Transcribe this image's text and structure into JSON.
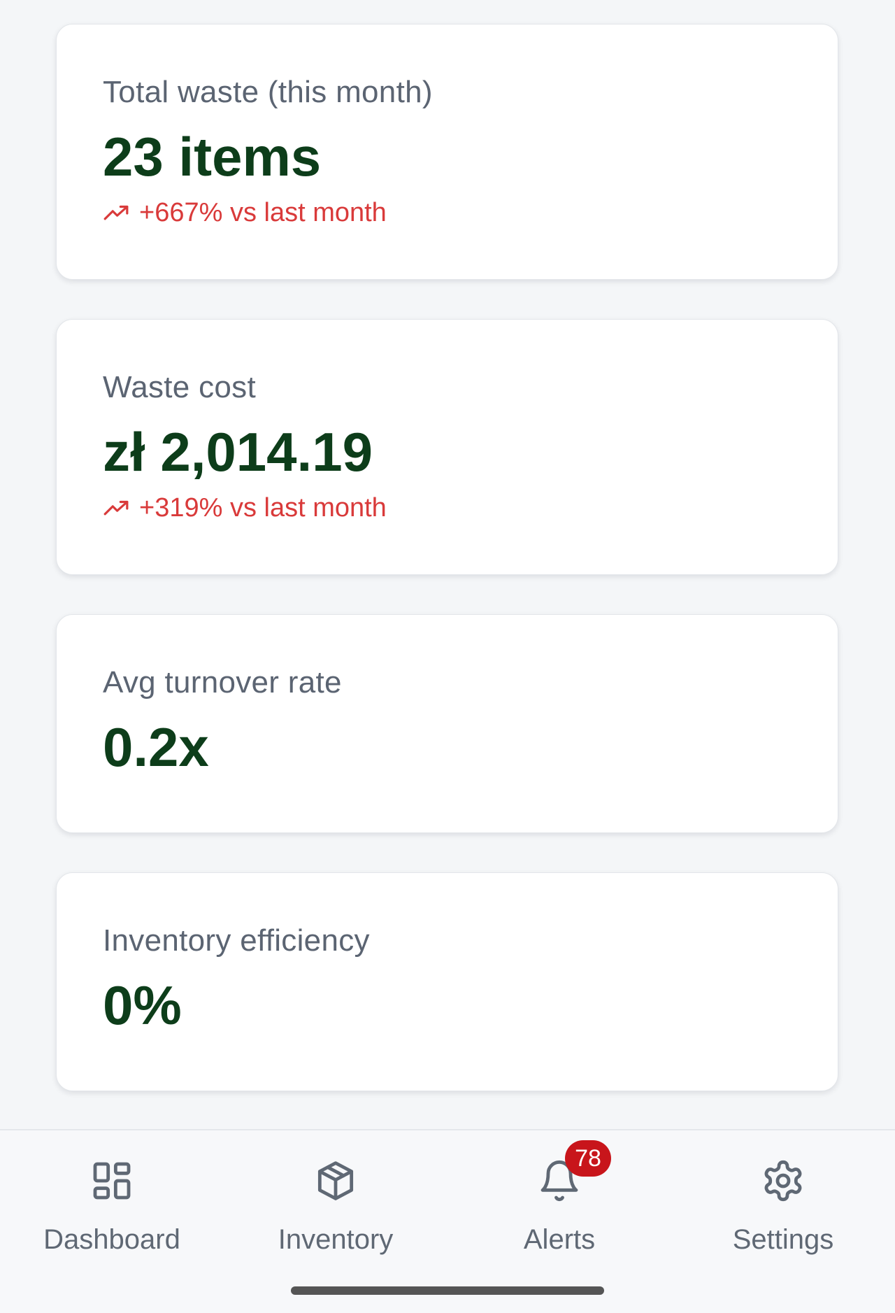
{
  "cards": [
    {
      "label": "Total waste (this month)",
      "value": "23 items",
      "trend": "+667% vs last month"
    },
    {
      "label": "Waste cost",
      "value": "zł 2,014.19",
      "trend": "+319% vs last month"
    },
    {
      "label": "Avg turnover rate",
      "value": "0.2x"
    },
    {
      "label": "Inventory efficiency",
      "value": "0%"
    }
  ],
  "colors": {
    "value": "#0d3d1a",
    "label": "#5b6472",
    "trend_up": "#d93a3a",
    "badge": "#c8151b",
    "background": "#f4f6f8"
  },
  "nav": {
    "items": [
      {
        "label": "Dashboard",
        "icon": "dashboard-icon"
      },
      {
        "label": "Inventory",
        "icon": "box-icon"
      },
      {
        "label": "Alerts",
        "icon": "bell-icon",
        "badge": "78"
      },
      {
        "label": "Settings",
        "icon": "gear-icon"
      }
    ]
  }
}
